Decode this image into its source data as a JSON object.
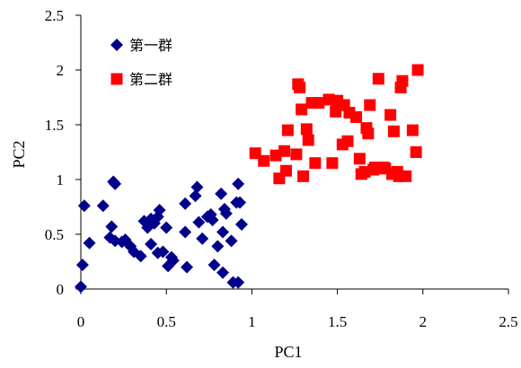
{
  "chart_data": {
    "type": "scatter",
    "xlabel": "PC1",
    "ylabel": "PC2",
    "xlim": [
      0,
      2.5
    ],
    "ylim": [
      0,
      2.5
    ],
    "xticks": [
      "0",
      "0.5",
      "1",
      "1.5",
      "2",
      "2.5"
    ],
    "yticks": [
      "0",
      "0.5",
      "1",
      "1.5",
      "2",
      "2.5"
    ],
    "grid": false,
    "legend_position": "top-left",
    "series": [
      {
        "name": "第一群",
        "color": "#00008B",
        "marker": "diamond",
        "points": [
          [
            0.0,
            0.02
          ],
          [
            0.01,
            0.22
          ],
          [
            0.02,
            0.76
          ],
          [
            0.05,
            0.42
          ],
          [
            0.13,
            0.76
          ],
          [
            0.17,
            0.47
          ],
          [
            0.18,
            0.57
          ],
          [
            0.19,
            0.98
          ],
          [
            0.2,
            0.96
          ],
          [
            0.2,
            0.44
          ],
          [
            0.24,
            0.43
          ],
          [
            0.26,
            0.45
          ],
          [
            0.29,
            0.39
          ],
          [
            0.31,
            0.34
          ],
          [
            0.35,
            0.3
          ],
          [
            0.37,
            0.62
          ],
          [
            0.39,
            0.56
          ],
          [
            0.41,
            0.64
          ],
          [
            0.41,
            0.41
          ],
          [
            0.43,
            0.6
          ],
          [
            0.45,
            0.66
          ],
          [
            0.45,
            0.33
          ],
          [
            0.46,
            0.72
          ],
          [
            0.48,
            0.34
          ],
          [
            0.5,
            0.56
          ],
          [
            0.51,
            0.21
          ],
          [
            0.53,
            0.29
          ],
          [
            0.54,
            0.26
          ],
          [
            0.61,
            0.78
          ],
          [
            0.61,
            0.52
          ],
          [
            0.62,
            0.2
          ],
          [
            0.67,
            0.85
          ],
          [
            0.68,
            0.93
          ],
          [
            0.69,
            0.61
          ],
          [
            0.71,
            0.46
          ],
          [
            0.74,
            0.66
          ],
          [
            0.76,
            0.68
          ],
          [
            0.77,
            0.63
          ],
          [
            0.78,
            0.22
          ],
          [
            0.8,
            0.39
          ],
          [
            0.82,
            0.87
          ],
          [
            0.83,
            0.52
          ],
          [
            0.83,
            0.15
          ],
          [
            0.84,
            0.73
          ],
          [
            0.85,
            0.69
          ],
          [
            0.88,
            0.44
          ],
          [
            0.89,
            0.06
          ],
          [
            0.91,
            0.79
          ],
          [
            0.92,
            0.06
          ],
          [
            0.92,
            0.96
          ],
          [
            0.93,
            0.79
          ],
          [
            0.94,
            0.59
          ]
        ]
      },
      {
        "name": "第二群",
        "color": "#FF0000",
        "marker": "square",
        "points": [
          [
            1.02,
            1.24
          ],
          [
            1.07,
            1.17
          ],
          [
            1.14,
            1.22
          ],
          [
            1.16,
            1.01
          ],
          [
            1.19,
            1.26
          ],
          [
            1.2,
            1.08
          ],
          [
            1.21,
            1.45
          ],
          [
            1.26,
            1.23
          ],
          [
            1.27,
            1.87
          ],
          [
            1.28,
            1.84
          ],
          [
            1.29,
            1.64
          ],
          [
            1.3,
            1.03
          ],
          [
            1.32,
            1.46
          ],
          [
            1.33,
            1.36
          ],
          [
            1.35,
            1.7
          ],
          [
            1.37,
            1.15
          ],
          [
            1.39,
            1.7
          ],
          [
            1.45,
            1.73
          ],
          [
            1.47,
            1.15
          ],
          [
            1.49,
            1.62
          ],
          [
            1.5,
            1.72
          ],
          [
            1.52,
            1.68
          ],
          [
            1.53,
            1.32
          ],
          [
            1.54,
            1.68
          ],
          [
            1.56,
            1.35
          ],
          [
            1.57,
            1.61
          ],
          [
            1.61,
            1.57
          ],
          [
            1.63,
            1.19
          ],
          [
            1.64,
            1.05
          ],
          [
            1.66,
            1.07
          ],
          [
            1.67,
            1.47
          ],
          [
            1.68,
            1.42
          ],
          [
            1.69,
            1.68
          ],
          [
            1.71,
            1.09
          ],
          [
            1.72,
            1.11
          ],
          [
            1.74,
            1.92
          ],
          [
            1.77,
            1.11
          ],
          [
            1.78,
            1.1
          ],
          [
            1.81,
            1.59
          ],
          [
            1.82,
            1.05
          ],
          [
            1.83,
            1.44
          ],
          [
            1.85,
            1.07
          ],
          [
            1.86,
            1.03
          ],
          [
            1.87,
            1.84
          ],
          [
            1.88,
            1.9
          ],
          [
            1.9,
            1.03
          ],
          [
            1.94,
            1.45
          ],
          [
            1.96,
            1.25
          ],
          [
            1.97,
            2.0
          ]
        ]
      }
    ]
  }
}
